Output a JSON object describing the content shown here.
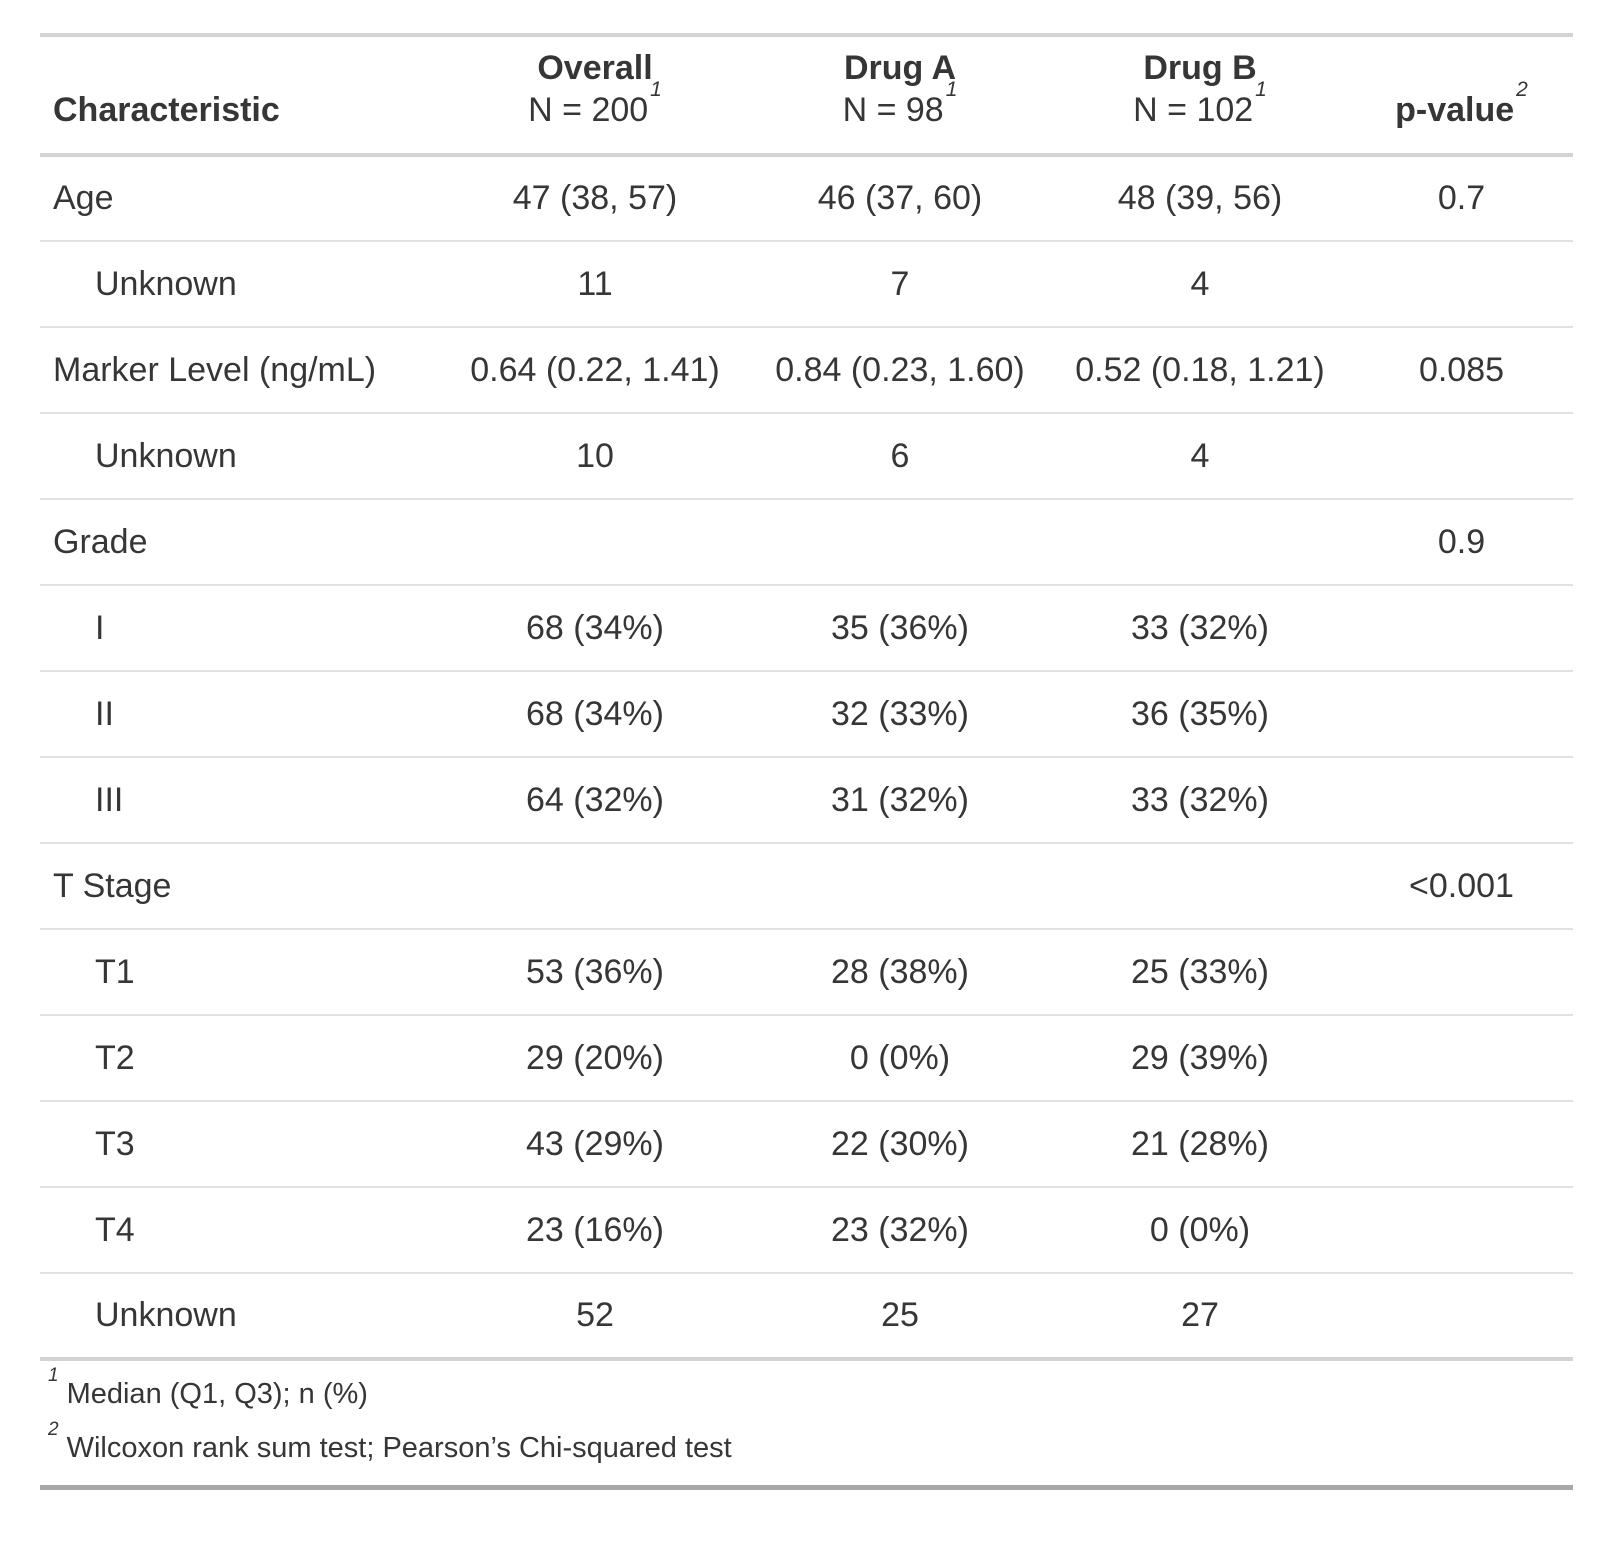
{
  "table": {
    "header": {
      "characteristic": "Characteristic",
      "groups": [
        {
          "label": "Overall",
          "n_label": "N = 200",
          "footnote_mark": "1"
        },
        {
          "label": "Drug A",
          "n_label": "N = 98",
          "footnote_mark": "1"
        },
        {
          "label": "Drug B",
          "n_label": "N = 102",
          "footnote_mark": "1"
        }
      ],
      "pvalue": {
        "label": "p-value",
        "footnote_mark": "2"
      }
    },
    "rows": [
      {
        "label": "Age",
        "indent": false,
        "values": [
          "47 (38, 57)",
          "46 (37, 60)",
          "48 (39, 56)"
        ],
        "pvalue": "0.7"
      },
      {
        "label": "Unknown",
        "indent": true,
        "values": [
          "11",
          "7",
          "4"
        ],
        "pvalue": ""
      },
      {
        "label": "Marker Level (ng/mL)",
        "indent": false,
        "values": [
          "0.64 (0.22, 1.41)",
          "0.84 (0.23, 1.60)",
          "0.52 (0.18, 1.21)"
        ],
        "pvalue": "0.085"
      },
      {
        "label": "Unknown",
        "indent": true,
        "values": [
          "10",
          "6",
          "4"
        ],
        "pvalue": ""
      },
      {
        "label": "Grade",
        "indent": false,
        "values": [
          "",
          "",
          ""
        ],
        "pvalue": "0.9"
      },
      {
        "label": "I",
        "indent": true,
        "values": [
          "68 (34%)",
          "35 (36%)",
          "33 (32%)"
        ],
        "pvalue": ""
      },
      {
        "label": "II",
        "indent": true,
        "values": [
          "68 (34%)",
          "32 (33%)",
          "36 (35%)"
        ],
        "pvalue": ""
      },
      {
        "label": "III",
        "indent": true,
        "values": [
          "64 (32%)",
          "31 (32%)",
          "33 (32%)"
        ],
        "pvalue": ""
      },
      {
        "label": "T Stage",
        "indent": false,
        "values": [
          "",
          "",
          ""
        ],
        "pvalue": "<0.001"
      },
      {
        "label": "T1",
        "indent": true,
        "values": [
          "53 (36%)",
          "28 (38%)",
          "25 (33%)"
        ],
        "pvalue": ""
      },
      {
        "label": "T2",
        "indent": true,
        "values": [
          "29 (20%)",
          "0 (0%)",
          "29 (39%)"
        ],
        "pvalue": ""
      },
      {
        "label": "T3",
        "indent": true,
        "values": [
          "43 (29%)",
          "22 (30%)",
          "21 (28%)"
        ],
        "pvalue": ""
      },
      {
        "label": "T4",
        "indent": true,
        "values": [
          "23 (16%)",
          "23 (32%)",
          "0 (0%)"
        ],
        "pvalue": ""
      },
      {
        "label": "Unknown",
        "indent": true,
        "values": [
          "52",
          "25",
          "27"
        ],
        "pvalue": ""
      }
    ],
    "footnotes": [
      {
        "mark": "1",
        "text": "Median (Q1, Q3); n (%)"
      },
      {
        "mark": "2",
        "text": "Wilcoxon rank sum test; Pearson’s Chi-squared test"
      }
    ]
  },
  "colors": {
    "text": "#363636",
    "border_light": "#E2E2E2",
    "border_medium": "#D3D3D3",
    "border_dark": "#A8A8A8",
    "background": "#FFFFFF"
  },
  "chart_data": {
    "type": "table",
    "title": "",
    "columns": [
      "Characteristic",
      "Overall N = 200",
      "Drug A N = 98",
      "Drug B N = 102",
      "p-value"
    ],
    "rows": [
      [
        "Age",
        "47 (38, 57)",
        "46 (37, 60)",
        "48 (39, 56)",
        "0.7"
      ],
      [
        "Unknown",
        "11",
        "7",
        "4",
        ""
      ],
      [
        "Marker Level (ng/mL)",
        "0.64 (0.22, 1.41)",
        "0.84 (0.23, 1.60)",
        "0.52 (0.18, 1.21)",
        "0.085"
      ],
      [
        "Unknown",
        "10",
        "6",
        "4",
        ""
      ],
      [
        "Grade",
        "",
        "",
        "",
        "0.9"
      ],
      [
        "I",
        "68 (34%)",
        "35 (36%)",
        "33 (32%)",
        ""
      ],
      [
        "II",
        "68 (34%)",
        "32 (33%)",
        "36 (35%)",
        ""
      ],
      [
        "III",
        "64 (32%)",
        "31 (32%)",
        "33 (32%)",
        ""
      ],
      [
        "T Stage",
        "",
        "",
        "",
        "<0.001"
      ],
      [
        "T1",
        "53 (36%)",
        "28 (38%)",
        "25 (33%)",
        ""
      ],
      [
        "T2",
        "29 (20%)",
        "0 (0%)",
        "29 (39%)",
        ""
      ],
      [
        "T3",
        "43 (29%)",
        "22 (30%)",
        "21 (28%)",
        ""
      ],
      [
        "T4",
        "23 (16%)",
        "23 (32%)",
        "0 (0%)",
        ""
      ],
      [
        "Unknown",
        "52",
        "25",
        "27",
        ""
      ]
    ],
    "footnotes": [
      "1 Median (Q1, Q3); n (%)",
      "2 Wilcoxon rank sum test; Pearson’s Chi-squared test"
    ]
  }
}
